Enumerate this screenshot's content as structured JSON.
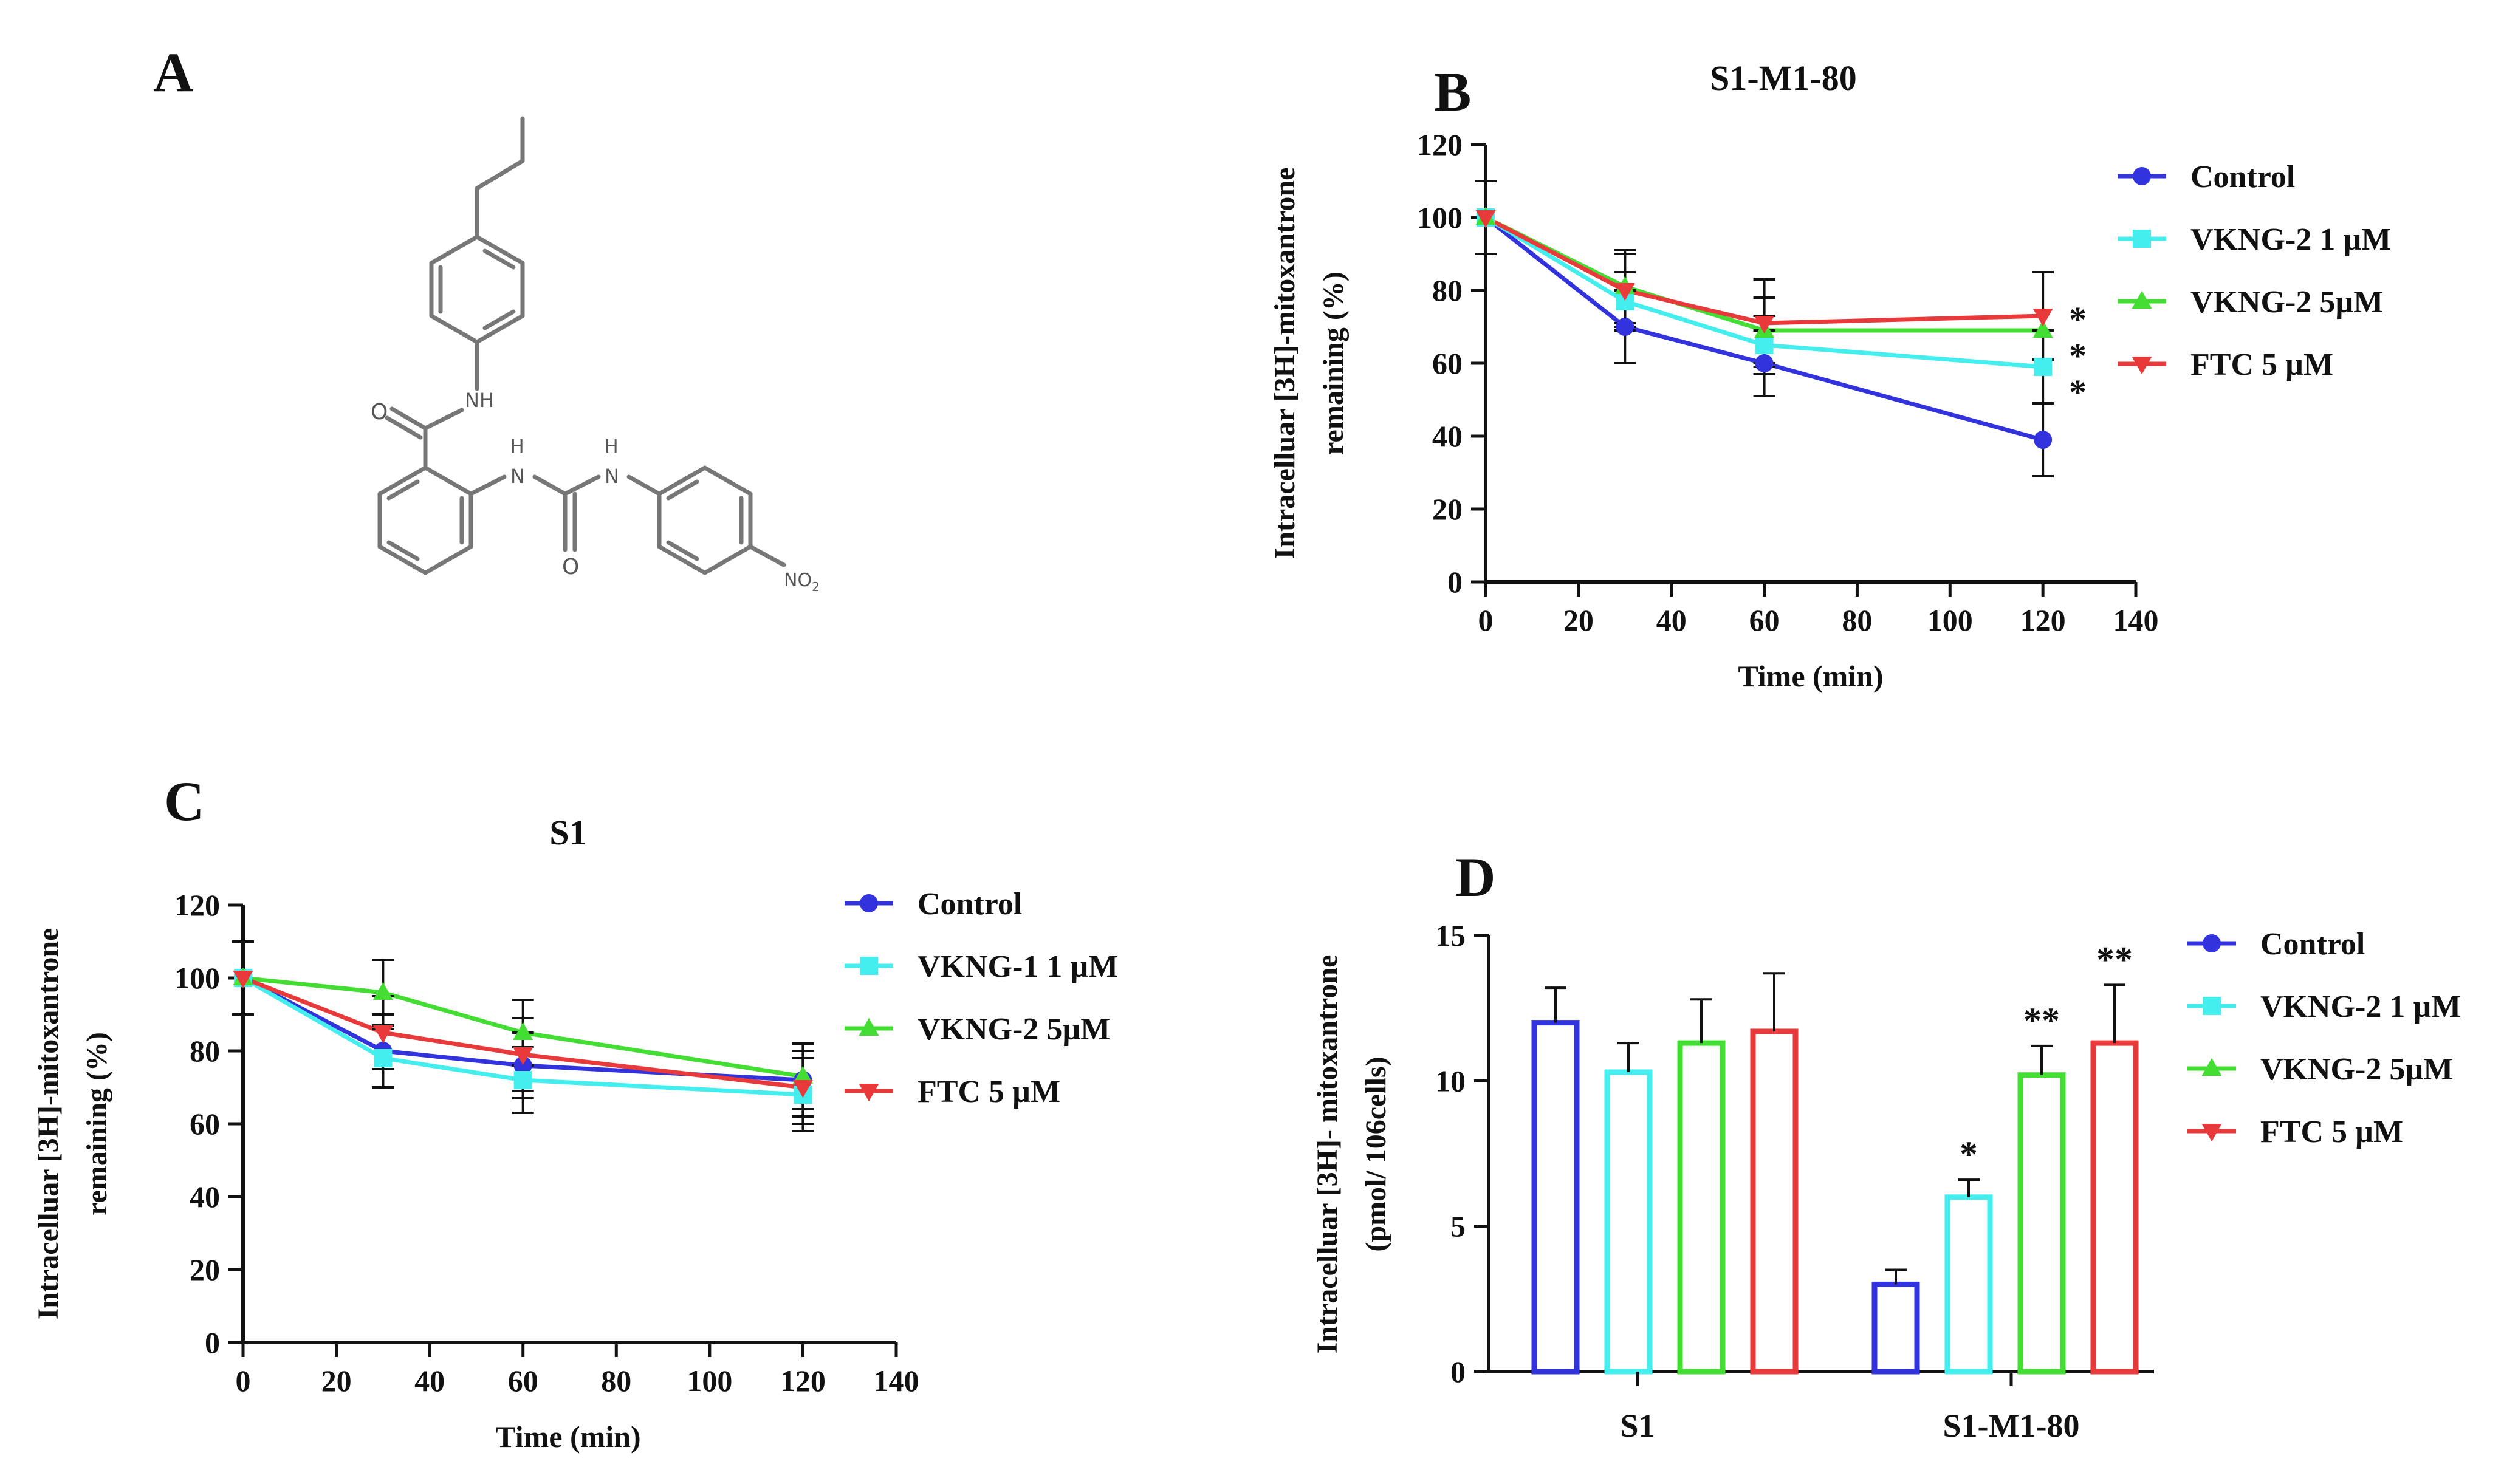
{
  "panels": {
    "A": {
      "letter": "A"
    },
    "B": {
      "letter": "B"
    },
    "C": {
      "letter": "C"
    },
    "D": {
      "letter": "D"
    }
  },
  "molecule": {
    "labels": {
      "amide_o": "O",
      "amide_nh": "NH",
      "urea_nh1": "H",
      "urea_n1": "N",
      "urea_nh2": "H",
      "urea_n2": "N",
      "urea_o": "O",
      "nitro": "NO",
      "nitro_sub": "2"
    }
  },
  "colors": {
    "control": "#3333dd",
    "vkng_low": "#44eeee",
    "vkng_high": "#44dd33",
    "ftc": "#e83a3a",
    "axis": "#111111"
  },
  "chart_data": [
    {
      "panel": "B",
      "type": "line",
      "title": "S1-M1-80",
      "xlabel": "Time (min)",
      "ylabel_line1": "Intracelluar [3H]-mitoxantrone",
      "ylabel_line2": "remaining (%)",
      "xlim": [
        0,
        140
      ],
      "ylim": [
        0,
        120
      ],
      "xticks": [
        0,
        20,
        40,
        60,
        80,
        100,
        120,
        140
      ],
      "yticks": [
        0,
        20,
        40,
        60,
        80,
        100,
        120
      ],
      "legend_position": "right",
      "x": [
        0,
        30,
        60,
        120
      ],
      "series": [
        {
          "name": "Control",
          "marker": "circle",
          "color": "#3333dd",
          "values": [
            100,
            70,
            60,
            39
          ],
          "err": [
            10,
            10,
            9,
            10
          ]
        },
        {
          "name": "VKNG-2 1 µM",
          "marker": "square",
          "color": "#44eeee",
          "values": [
            100,
            77,
            65,
            59
          ],
          "err": [
            0,
            8,
            8,
            10
          ]
        },
        {
          "name": "VKNG-2 5µM",
          "marker": "triangle-up",
          "color": "#44dd33",
          "values": [
            100,
            81,
            69,
            69
          ],
          "err": [
            0,
            10,
            9,
            0
          ]
        },
        {
          "name": "FTC 5 µM",
          "marker": "triangle-down",
          "color": "#e83a3a",
          "values": [
            100,
            80,
            71,
            73
          ],
          "err": [
            0,
            10,
            12,
            12
          ]
        }
      ],
      "significance": [
        "*",
        "*",
        "*"
      ]
    },
    {
      "panel": "C",
      "type": "line",
      "title": "S1",
      "xlabel": "Time (min)",
      "ylabel_line1": "Intracelluar [3H]-mitoxantrone",
      "ylabel_line2": "remaining (%)",
      "xlim": [
        0,
        140
      ],
      "ylim": [
        0,
        120
      ],
      "xticks": [
        0,
        20,
        40,
        60,
        80,
        100,
        120,
        140
      ],
      "yticks": [
        0,
        20,
        40,
        60,
        80,
        100,
        120
      ],
      "legend_position": "right",
      "x": [
        0,
        30,
        60,
        120
      ],
      "series": [
        {
          "name": "Control",
          "marker": "circle",
          "color": "#3333dd",
          "values": [
            100,
            80,
            76,
            72
          ],
          "err": [
            10,
            10,
            9,
            10
          ]
        },
        {
          "name": "VKNG-1 1 µM",
          "marker": "square",
          "color": "#44eeee",
          "values": [
            100,
            78,
            72,
            68
          ],
          "err": [
            0,
            8,
            9,
            10
          ]
        },
        {
          "name": "VKNG-2 5µM",
          "marker": "triangle-up",
          "color": "#44dd33",
          "values": [
            100,
            96,
            85,
            73
          ],
          "err": [
            0,
            9,
            9,
            9
          ]
        },
        {
          "name": "FTC 5 µM",
          "marker": "triangle-down",
          "color": "#e83a3a",
          "values": [
            100,
            85,
            79,
            70
          ],
          "err": [
            0,
            10,
            10,
            10
          ]
        }
      ]
    },
    {
      "panel": "D",
      "type": "bar",
      "xlabel": "",
      "ylabel_line1": "Intracelluar [3H]- mitoxantrone",
      "ylabel_line2": "(pmol/ 106cells)",
      "categories": [
        "S1",
        "S1-M1-80"
      ],
      "ylim": [
        0,
        15
      ],
      "yticks": [
        0,
        5,
        10,
        15
      ],
      "legend_position": "right",
      "series": [
        {
          "name": "Control",
          "marker": "circle",
          "color": "#3333dd",
          "values": [
            12,
            3
          ],
          "err": [
            1.2,
            0.5
          ]
        },
        {
          "name": "VKNG-2 1 µM",
          "marker": "square",
          "color": "#44eeee",
          "values": [
            10.3,
            6
          ],
          "err": [
            1.0,
            0.6
          ]
        },
        {
          "name": "VKNG-2 5µM",
          "marker": "triangle-up",
          "color": "#44dd33",
          "values": [
            11.3,
            10.2
          ],
          "err": [
            1.5,
            1.0
          ]
        },
        {
          "name": "FTC 5 µM",
          "marker": "triangle-down",
          "color": "#e83a3a",
          "values": [
            11.7,
            11.3
          ],
          "err": [
            2.0,
            2.0
          ]
        }
      ],
      "significance": [
        [
          "",
          ""
        ],
        [
          "",
          "*"
        ],
        [
          "",
          "**"
        ],
        [
          "",
          "**"
        ]
      ]
    }
  ]
}
